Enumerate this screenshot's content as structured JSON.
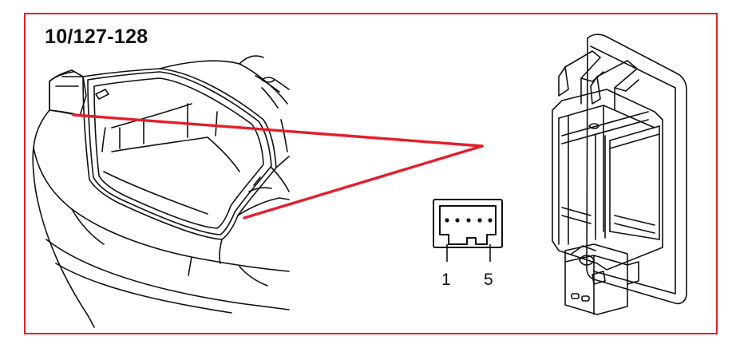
{
  "diagram": {
    "reference_code": "10/127-128",
    "connector": {
      "pin_first": "1",
      "pin_last": "5",
      "pin_count": 5
    },
    "colors": {
      "frame": "#e41e2b",
      "pointer_lines": "#e41e2b",
      "line_art": "#111111"
    }
  }
}
